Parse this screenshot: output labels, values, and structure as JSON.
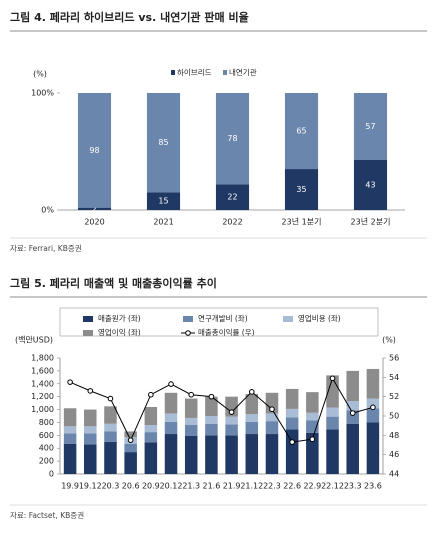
{
  "chart_data": [
    {
      "type": "stacked_bar",
      "title": "그림 4. 페라리 하이브리드 vs. 내연기관 판매 비율",
      "source": "자료: Ferrari, KB증권",
      "y_label": "(%)",
      "categories": [
        "2020",
        "2021",
        "2022",
        "23년 1분기",
        "23년 2분기"
      ],
      "series": [
        {
          "name": "하이브리드",
          "color": "#1f3864",
          "values": [
            2,
            15,
            22,
            35,
            43
          ]
        },
        {
          "name": "내연기관",
          "color": "#6a86ad",
          "values": [
            98,
            85,
            78,
            65,
            57
          ]
        }
      ],
      "ylim": [
        0,
        100
      ],
      "yticks": [
        {
          "value": 0,
          "label": "0%"
        },
        {
          "value": 100,
          "label": "100%"
        }
      ],
      "data_labels": true,
      "grid": false
    },
    {
      "type": "stacked_bar",
      "title": "그림 5. 페라리 매출액 및 매출총이익률 추이",
      "source": "자료: Factset, KB증권",
      "y_label": "(백만USD)",
      "y2_label": "(%)",
      "categories": [
        "19.9",
        "19.12",
        "20.3",
        "20.6",
        "20.9",
        "20.12",
        "21.3",
        "21.6",
        "21.9",
        "21.12",
        "22.3",
        "22.6",
        "22.9",
        "22.12",
        "23.3",
        "23.6"
      ],
      "series": [
        {
          "name": "매출원가 (좌)",
          "color": "#1f3864",
          "values": [
            470,
            460,
            500,
            340,
            490,
            620,
            590,
            600,
            600,
            620,
            620,
            690,
            640,
            690,
            780,
            800
          ]
        },
        {
          "name": "연구개발비 (좌)",
          "color": "#6a86ad",
          "values": [
            160,
            170,
            160,
            130,
            160,
            190,
            170,
            180,
            170,
            190,
            200,
            190,
            190,
            200,
            210,
            220
          ]
        },
        {
          "name": "영업비용 (좌)",
          "color": "#a9bcd6",
          "values": [
            110,
            110,
            120,
            100,
            110,
            130,
            110,
            120,
            120,
            120,
            120,
            130,
            120,
            140,
            140,
            150
          ]
        },
        {
          "name": "영업이익 (좌)",
          "color": "#8c8c8c",
          "values": [
            280,
            260,
            270,
            90,
            280,
            320,
            300,
            300,
            310,
            310,
            320,
            310,
            320,
            500,
            470,
            460
          ]
        },
        {
          "name": "매출총이익률 (우)",
          "color": "#000000",
          "axis": "y2",
          "values": [
            53.5,
            52.6,
            51.8,
            47.5,
            52.2,
            53.3,
            52.2,
            52.0,
            50.4,
            52.5,
            50.7,
            47.3,
            47.6,
            53.9,
            50.3,
            50.9
          ]
        }
      ],
      "ylim": [
        0,
        1800
      ],
      "yticks": [
        0,
        200,
        400,
        600,
        800,
        {
          "value": 1000,
          "label": "1,000"
        },
        {
          "value": 1200,
          "label": "1,200"
        },
        {
          "value": 1400,
          "label": "1,400"
        },
        {
          "value": 1600,
          "label": "1,600"
        },
        {
          "value": 1800,
          "label": "1,800"
        }
      ],
      "y2lim": [
        44,
        56
      ],
      "y2ticks": [
        44,
        46,
        48,
        50,
        52,
        54,
        56
      ],
      "data_labels": false,
      "grid": false
    }
  ]
}
